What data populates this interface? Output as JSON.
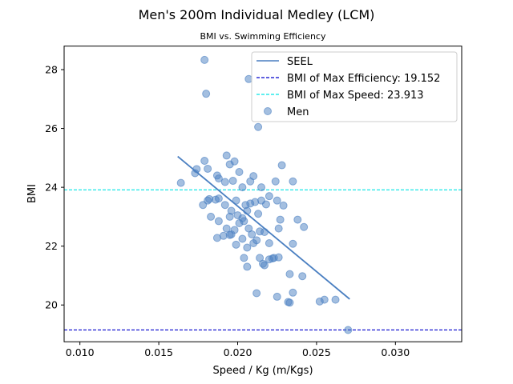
{
  "chart_data": {
    "type": "scatter",
    "title": "Men's 200m Individual Medley (LCM)",
    "subtitle": "BMI vs. Swimming Efficiency",
    "xlabel": "Speed / Kg (m/Kgs)",
    "ylabel": "BMI",
    "xlim": [
      0.009,
      0.0342
    ],
    "ylim": [
      18.75,
      28.8
    ],
    "xticks": [
      "0.010",
      "0.015",
      "0.020",
      "0.025",
      "0.030"
    ],
    "yticks": [
      "20",
      "22",
      "24",
      "26",
      "28"
    ],
    "grid": false,
    "legend_position": "top-right",
    "colors": {
      "points": "#4a7fc1",
      "fit": "#4a7fc1",
      "efficiency_line": "#0000cc",
      "speed_line": "#00e5e5"
    },
    "fit_line": {
      "name": "SEEL",
      "x": [
        0.0162,
        0.0271
      ],
      "y": [
        25.05,
        20.2
      ]
    },
    "hlines": [
      {
        "label": "BMI of Max Efficiency: 19.152",
        "y": 19.152,
        "color": "#0000cc"
      },
      {
        "label": "BMI of Max Speed: 23.913",
        "y": 23.913,
        "color": "#00e5e5"
      }
    ],
    "series": [
      {
        "name": "Men",
        "points": [
          [
            0.0179,
            28.33
          ],
          [
            0.018,
            27.18
          ],
          [
            0.0213,
            26.05
          ],
          [
            0.0207,
            27.68
          ],
          [
            0.0164,
            24.15
          ],
          [
            0.0173,
            24.48
          ],
          [
            0.0174,
            24.62
          ],
          [
            0.0179,
            24.9
          ],
          [
            0.0181,
            24.63
          ],
          [
            0.0187,
            24.4
          ],
          [
            0.0188,
            24.3
          ],
          [
            0.0192,
            24.18
          ],
          [
            0.0193,
            25.08
          ],
          [
            0.0195,
            24.78
          ],
          [
            0.0197,
            24.22
          ],
          [
            0.0198,
            24.88
          ],
          [
            0.0201,
            24.52
          ],
          [
            0.0203,
            24.0
          ],
          [
            0.0208,
            24.2
          ],
          [
            0.021,
            24.38
          ],
          [
            0.0215,
            24.0
          ],
          [
            0.0224,
            24.2
          ],
          [
            0.0228,
            24.75
          ],
          [
            0.0235,
            24.2
          ],
          [
            0.0178,
            23.4
          ],
          [
            0.0181,
            23.55
          ],
          [
            0.0182,
            23.6
          ],
          [
            0.0186,
            23.58
          ],
          [
            0.0188,
            23.62
          ],
          [
            0.0192,
            23.4
          ],
          [
            0.0195,
            23.0
          ],
          [
            0.0196,
            23.2
          ],
          [
            0.0199,
            23.55
          ],
          [
            0.02,
            23.05
          ],
          [
            0.0203,
            22.95
          ],
          [
            0.0205,
            23.4
          ],
          [
            0.0206,
            23.2
          ],
          [
            0.0208,
            23.45
          ],
          [
            0.0211,
            23.5
          ],
          [
            0.0213,
            23.1
          ],
          [
            0.0215,
            23.55
          ],
          [
            0.0218,
            23.42
          ],
          [
            0.022,
            23.7
          ],
          [
            0.0225,
            23.55
          ],
          [
            0.0229,
            23.38
          ],
          [
            0.0183,
            23.0
          ],
          [
            0.0188,
            22.85
          ],
          [
            0.0193,
            22.6
          ],
          [
            0.0196,
            22.4
          ],
          [
            0.0198,
            22.55
          ],
          [
            0.0201,
            22.78
          ],
          [
            0.0204,
            22.85
          ],
          [
            0.0207,
            22.6
          ],
          [
            0.0209,
            22.4
          ],
          [
            0.0214,
            22.5
          ],
          [
            0.0217,
            22.48
          ],
          [
            0.022,
            22.1
          ],
          [
            0.0226,
            22.6
          ],
          [
            0.0227,
            22.9
          ],
          [
            0.0238,
            22.9
          ],
          [
            0.0242,
            22.65
          ],
          [
            0.0187,
            22.28
          ],
          [
            0.0191,
            22.35
          ],
          [
            0.0195,
            22.38
          ],
          [
            0.0199,
            22.05
          ],
          [
            0.0203,
            22.25
          ],
          [
            0.0206,
            21.95
          ],
          [
            0.021,
            22.1
          ],
          [
            0.0212,
            22.2
          ],
          [
            0.0214,
            21.6
          ],
          [
            0.0216,
            21.4
          ],
          [
            0.0217,
            21.35
          ],
          [
            0.0222,
            21.58
          ],
          [
            0.0223,
            21.6
          ],
          [
            0.0226,
            21.62
          ],
          [
            0.0204,
            21.6
          ],
          [
            0.0206,
            21.3
          ],
          [
            0.022,
            21.55
          ],
          [
            0.0233,
            21.05
          ],
          [
            0.0235,
            22.08
          ],
          [
            0.0241,
            20.98
          ],
          [
            0.0212,
            20.4
          ],
          [
            0.0225,
            20.28
          ],
          [
            0.0232,
            20.1
          ],
          [
            0.0233,
            20.08
          ],
          [
            0.0235,
            20.42
          ],
          [
            0.0252,
            20.12
          ],
          [
            0.0255,
            20.18
          ],
          [
            0.0262,
            20.18
          ],
          [
            0.027,
            19.15
          ]
        ]
      }
    ]
  }
}
